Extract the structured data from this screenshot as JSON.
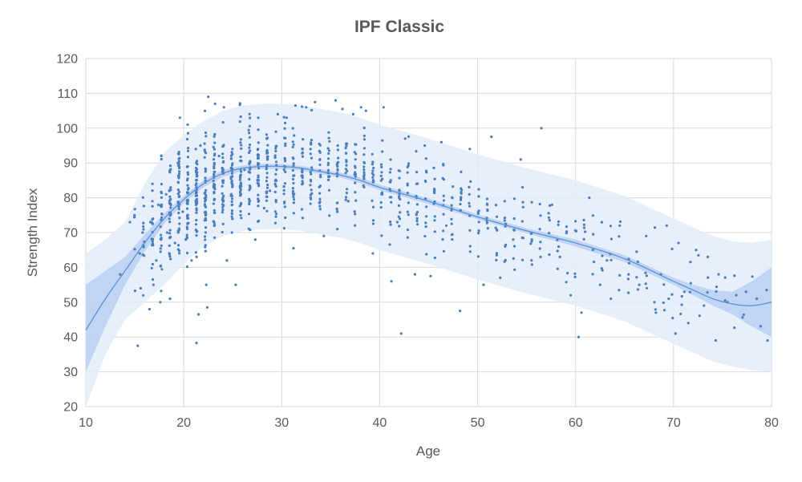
{
  "chart_data": {
    "type": "scatter",
    "title": "IPF Classic",
    "xlabel": "Age",
    "ylabel": "Strength Index",
    "xlim": [
      10,
      80
    ],
    "ylim": [
      20,
      120
    ],
    "x_ticks": [
      10,
      20,
      30,
      40,
      50,
      60,
      70,
      80
    ],
    "y_ticks": [
      20,
      30,
      40,
      50,
      60,
      70,
      80,
      90,
      100,
      110,
      120
    ],
    "grid": true,
    "legend": "none",
    "colors": {
      "points": "#4a7ebb",
      "trend_line": "#5b8fd6",
      "outer_band": "#e3ecfa",
      "inner_band": "#b9d0f2",
      "grid": "#d9d9d9",
      "text": "#595959"
    },
    "trend": {
      "x": [
        10,
        12,
        14,
        16,
        18,
        20,
        22,
        24,
        26,
        28,
        30,
        32,
        34,
        36,
        38,
        40,
        45,
        50,
        55,
        60,
        65,
        70,
        72,
        74,
        76,
        78,
        80
      ],
      "y": [
        42,
        51,
        59,
        67,
        74,
        79.5,
        84,
        87,
        88.5,
        89,
        89,
        88.5,
        87.5,
        86.5,
        85,
        83,
        79,
        74.5,
        70.5,
        67,
        62.5,
        56,
        53.5,
        51,
        49.5,
        49,
        50
      ]
    },
    "inner_band": {
      "x": [
        10,
        12,
        14,
        16,
        18,
        20,
        22,
        24,
        26,
        28,
        30,
        32,
        34,
        36,
        38,
        40,
        45,
        50,
        55,
        60,
        65,
        70,
        72,
        74,
        76,
        78,
        80
      ],
      "lower": [
        30,
        43,
        55,
        64.5,
        72.5,
        78.5,
        83,
        86,
        87.8,
        88.3,
        88.3,
        87.8,
        86.8,
        85.8,
        84.2,
        82.2,
        78.2,
        73.8,
        69.8,
        66,
        61.5,
        55,
        52,
        49,
        46.5,
        43,
        40
      ],
      "upper": [
        55,
        59,
        63,
        69.5,
        75.5,
        80.5,
        85,
        88,
        89.3,
        89.7,
        89.7,
        89.2,
        88.2,
        87.2,
        85.8,
        83.8,
        79.8,
        75.2,
        71.2,
        68,
        63.5,
        57,
        55,
        53.5,
        53,
        56,
        60
      ]
    },
    "outer_band": {
      "x": [
        10,
        12,
        14,
        16,
        18,
        20,
        22,
        24,
        26,
        28,
        30,
        32,
        34,
        36,
        38,
        40,
        45,
        50,
        55,
        60,
        65,
        70,
        72,
        74,
        76,
        78,
        80
      ],
      "lower": [
        20,
        35,
        45,
        50,
        55,
        61,
        66,
        69,
        70.5,
        71,
        71,
        70.5,
        69.5,
        68.5,
        67,
        65,
        61,
        56.5,
        52.5,
        49,
        44.5,
        38,
        35.5,
        33,
        31.5,
        30.5,
        30
      ],
      "upper": [
        64,
        68,
        73,
        84,
        93,
        98,
        102,
        105,
        106.5,
        107,
        107,
        106.5,
        105.5,
        104.5,
        103,
        101,
        97,
        92.5,
        88.5,
        85,
        80.5,
        74,
        71.5,
        69,
        67.5,
        67,
        68
      ]
    },
    "points": [
      [
        13.5,
        58
      ],
      [
        14.5,
        73
      ],
      [
        15.3,
        37.5
      ],
      [
        15.5,
        64
      ],
      [
        15.6,
        54
      ],
      [
        15.8,
        70
      ],
      [
        16.5,
        48
      ],
      [
        16.6,
        73
      ],
      [
        16.8,
        84
      ],
      [
        16.9,
        55
      ],
      [
        17.2,
        62
      ],
      [
        17.4,
        78
      ],
      [
        17.6,
        50
      ],
      [
        17.7,
        92
      ],
      [
        18.2,
        81
      ],
      [
        18.6,
        51
      ],
      [
        19.1,
        67
      ],
      [
        19.4,
        90
      ],
      [
        19.6,
        103
      ],
      [
        19.9,
        76
      ],
      [
        21.3,
        38.3
      ],
      [
        21.5,
        46.5
      ],
      [
        22.3,
        55
      ],
      [
        22.4,
        48.5
      ],
      [
        22.5,
        109
      ],
      [
        23.2,
        107
      ],
      [
        24.1,
        106
      ],
      [
        24.4,
        62
      ],
      [
        25.3,
        55
      ],
      [
        26.2,
        88
      ],
      [
        27.3,
        68
      ],
      [
        27.6,
        103
      ],
      [
        28.2,
        77
      ],
      [
        29.6,
        104
      ],
      [
        30.5,
        103
      ],
      [
        31.2,
        65.5
      ],
      [
        31.4,
        106.5
      ],
      [
        32.5,
        106
      ],
      [
        33.4,
        107.5
      ],
      [
        34.3,
        69
      ],
      [
        35.5,
        108
      ],
      [
        36.2,
        105.5
      ],
      [
        37.3,
        104
      ],
      [
        38.1,
        106
      ],
      [
        38.6,
        105
      ],
      [
        39.3,
        64
      ],
      [
        40.4,
        106
      ],
      [
        41.2,
        56
      ],
      [
        42.2,
        41
      ],
      [
        42.6,
        97
      ],
      [
        43.6,
        58
      ],
      [
        44.6,
        95
      ],
      [
        45.2,
        57.5
      ],
      [
        46.3,
        96
      ],
      [
        48.2,
        47.5
      ],
      [
        49.2,
        94
      ],
      [
        50.6,
        55
      ],
      [
        51.4,
        97.5
      ],
      [
        52.3,
        57
      ],
      [
        54.4,
        91
      ],
      [
        55.5,
        62
      ],
      [
        56.5,
        100
      ],
      [
        57.6,
        78
      ],
      [
        59.5,
        52
      ],
      [
        60.3,
        40
      ],
      [
        60.6,
        47
      ],
      [
        61.4,
        80
      ],
      [
        62.5,
        55
      ],
      [
        63.6,
        51
      ],
      [
        64.5,
        72
      ],
      [
        65.4,
        58
      ],
      [
        66.5,
        55
      ],
      [
        67.2,
        69
      ],
      [
        68.2,
        47
      ],
      [
        69.3,
        72
      ],
      [
        69.5,
        51
      ],
      [
        70.2,
        41
      ],
      [
        70.5,
        67
      ],
      [
        71.1,
        53
      ],
      [
        71.5,
        44
      ],
      [
        72.3,
        65
      ],
      [
        73.1,
        49
      ],
      [
        73.5,
        63
      ],
      [
        74.3,
        39
      ],
      [
        74.6,
        58
      ],
      [
        75.5,
        50
      ],
      [
        76.4,
        52
      ],
      [
        77.4,
        53
      ],
      [
        78.5,
        51
      ],
      [
        79.5,
        53.5
      ],
      [
        79.6,
        39
      ],
      [
        18.3,
        70
      ],
      [
        20.2,
        68
      ],
      [
        20.8,
        62
      ],
      [
        21.7,
        95
      ],
      [
        23.6,
        92
      ],
      [
        25.8,
        75
      ],
      [
        28.8,
        82
      ],
      [
        33.1,
        88
      ],
      [
        36.8,
        79
      ],
      [
        41.8,
        73
      ],
      [
        46.8,
        72
      ],
      [
        52.8,
        66
      ],
      [
        58.4,
        63
      ],
      [
        63.2,
        62
      ],
      [
        68.7,
        58
      ]
    ],
    "cloud": {
      "x": [
        15,
        20,
        25,
        30,
        35,
        40,
        45,
        50,
        55,
        60,
        65,
        70,
        75,
        79.5
      ],
      "y": [
        66,
        80,
        87,
        89,
        87.5,
        83,
        79,
        74.5,
        70.5,
        67,
        62.5,
        56,
        50,
        50
      ],
      "sd": [
        7,
        8,
        7.5,
        7,
        7,
        7,
        6.5,
        6.5,
        6.5,
        6.5,
        6,
        6,
        5,
        5
      ],
      "density": [
        5,
        45,
        36,
        24,
        18,
        15,
        12,
        9,
        7,
        5,
        4,
        3,
        2,
        1
      ]
    }
  }
}
